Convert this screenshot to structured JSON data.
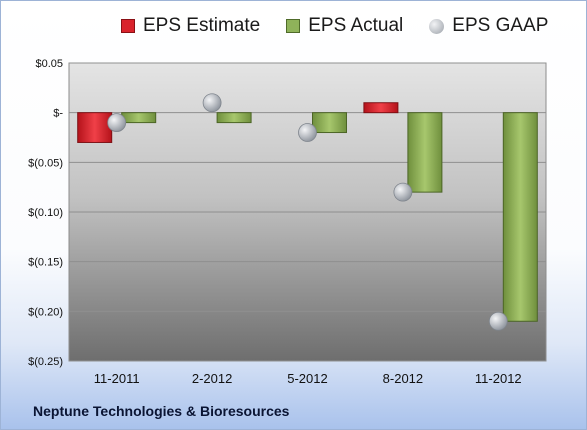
{
  "company": "Neptune Technologies & Bioresources",
  "chart_data": {
    "type": "bar",
    "categories": [
      "11-2011",
      "2-2012",
      "5-2012",
      "8-2012",
      "11-2012"
    ],
    "series": [
      {
        "name": "EPS Estimate",
        "type": "bar",
        "color": "#d9232c",
        "values": [
          -0.03,
          null,
          null,
          0.01,
          null
        ]
      },
      {
        "name": "EPS Actual",
        "type": "bar",
        "color": "#8fb35a",
        "values": [
          -0.01,
          -0.01,
          -0.02,
          -0.08,
          -0.21
        ]
      },
      {
        "name": "EPS GAAP",
        "type": "scatter",
        "color": "#b8bcc2",
        "values": [
          -0.01,
          0.01,
          -0.02,
          -0.08,
          -0.21
        ]
      }
    ],
    "ylim": [
      -0.25,
      0.05
    ],
    "yticks": [
      0.05,
      0,
      -0.05,
      -0.1,
      -0.15,
      -0.2,
      -0.25
    ],
    "ytick_labels": [
      "$0.05",
      "$-",
      "$(0.05)",
      "$(0.10)",
      "$(0.15)",
      "$(0.20)",
      "$(0.25)"
    ],
    "legend_position": "top",
    "grid": true
  }
}
